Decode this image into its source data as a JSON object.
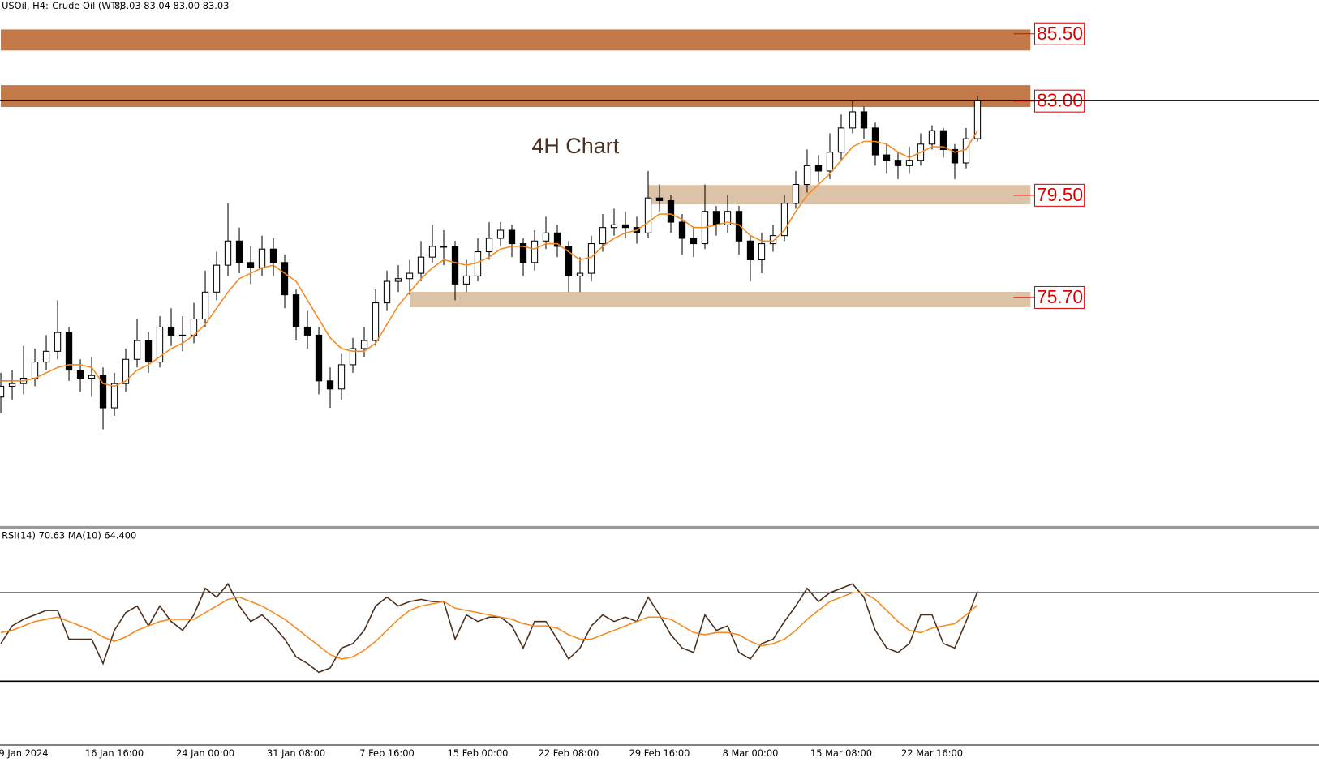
{
  "header": {
    "symbol": "USOil, H4:",
    "name": "Crude Oil (WTI)",
    "ohlc": "83.03 83.04 83.00 83.03"
  },
  "chart_data": [
    {
      "type": "candlestick",
      "annotations": [
        "4H Chart"
      ],
      "ylim": [
        67.22,
        86.75
      ],
      "categories": [
        null,
        null,
        "9 Jan 2024",
        null,
        null,
        null,
        null,
        null,
        null,
        null,
        "16 Jan 16:00",
        null,
        null,
        null,
        null,
        null,
        null,
        null,
        "24 Jan 00:00",
        null,
        null,
        null,
        null,
        null,
        null,
        null,
        "31 Jan 08:00",
        null,
        null,
        null,
        null,
        null,
        null,
        null,
        "7 Feb 16:00",
        null,
        null,
        null,
        null,
        null,
        null,
        null,
        "15 Feb 00:00",
        null,
        null,
        null,
        null,
        null,
        null,
        null,
        "22 Feb 08:00",
        null,
        null,
        null,
        null,
        null,
        null,
        null,
        "29 Feb 16:00",
        null,
        null,
        null,
        null,
        null,
        null,
        null,
        "8 Mar 00:00",
        null,
        null,
        null,
        null,
        null,
        null,
        null,
        "15 Mar 08:00",
        null,
        null,
        null,
        null,
        null,
        null,
        null,
        "22 Mar 16:00",
        null,
        null,
        null,
        null
      ],
      "open": [
        72.0,
        72.4,
        72.5,
        72.7,
        73.3,
        73.7,
        74.4,
        73.0,
        72.7,
        72.8,
        71.6,
        72.5,
        73.4,
        74.1,
        73.3,
        74.6,
        74.3,
        74.3,
        74.9,
        75.9,
        76.9,
        77.8,
        77.0,
        76.8,
        77.5,
        77.0,
        75.8,
        74.6,
        74.3,
        72.6,
        72.3,
        73.2,
        73.8,
        74.1,
        75.5,
        76.3,
        76.4,
        76.6,
        77.2,
        77.6,
        77.6,
        76.2,
        76.5,
        77.4,
        77.9,
        78.2,
        77.7,
        77.0,
        77.8,
        78.1,
        77.6,
        76.5,
        76.6,
        77.7,
        78.3,
        78.4,
        78.3,
        78.1,
        79.4,
        79.3,
        78.5,
        77.9,
        77.7,
        78.9,
        78.4,
        78.9,
        77.8,
        77.1,
        77.7,
        78.0,
        79.2,
        79.9,
        80.6,
        80.4,
        81.1,
        82.0,
        82.6,
        82.0,
        81.0,
        80.8,
        80.6,
        80.8,
        81.4,
        81.9,
        81.2,
        80.7,
        81.6
      ],
      "high": [
        72.9,
        73.0,
        73.9,
        73.8,
        74.3,
        75.6,
        74.6,
        73.4,
        73.5,
        73.1,
        72.9,
        73.8,
        74.9,
        74.4,
        75.0,
        75.3,
        75.0,
        75.5,
        76.7,
        77.4,
        79.2,
        78.3,
        77.6,
        78.0,
        77.9,
        77.3,
        76.0,
        75.2,
        74.6,
        73.1,
        73.6,
        74.2,
        74.6,
        76.0,
        76.7,
        76.9,
        77.1,
        77.8,
        78.4,
        78.2,
        77.8,
        77.1,
        77.9,
        78.5,
        78.5,
        78.4,
        77.9,
        78.2,
        78.7,
        78.4,
        77.8,
        77.2,
        78.0,
        78.8,
        79.0,
        78.9,
        78.7,
        80.4,
        79.9,
        79.5,
        78.8,
        78.3,
        79.9,
        79.1,
        79.5,
        79.1,
        78.0,
        78.1,
        78.4,
        79.5,
        80.4,
        81.2,
        81.0,
        81.8,
        82.5,
        83.0,
        82.8,
        82.2,
        81.4,
        81.1,
        81.3,
        81.8,
        82.1,
        82.0,
        81.4,
        82.0,
        83.2
      ],
      "low": [
        71.4,
        71.9,
        72.1,
        72.4,
        73.0,
        73.4,
        72.6,
        72.2,
        72.0,
        70.8,
        71.3,
        72.2,
        73.1,
        72.9,
        73.1,
        73.9,
        73.7,
        74.0,
        74.6,
        75.6,
        76.5,
        76.6,
        76.2,
        76.5,
        76.5,
        75.3,
        74.1,
        73.8,
        72.1,
        71.6,
        71.9,
        72.9,
        73.5,
        73.9,
        75.2,
        75.9,
        75.8,
        76.3,
        77.0,
        76.9,
        75.6,
        75.9,
        76.3,
        77.1,
        77.6,
        77.2,
        76.5,
        76.7,
        77.5,
        77.2,
        75.9,
        75.9,
        76.3,
        77.4,
        78.0,
        77.9,
        77.7,
        77.9,
        78.9,
        78.1,
        77.3,
        77.2,
        77.5,
        78.0,
        78.1,
        77.3,
        76.3,
        76.6,
        77.4,
        77.8,
        79.0,
        79.6,
        80.0,
        80.1,
        80.8,
        81.8,
        81.6,
        80.6,
        80.3,
        80.1,
        80.3,
        80.6,
        81.2,
        80.9,
        80.1,
        80.5,
        81.5
      ],
      "close": [
        72.4,
        72.5,
        72.7,
        73.3,
        73.7,
        74.4,
        73.0,
        72.7,
        72.8,
        71.6,
        72.5,
        73.4,
        74.1,
        73.3,
        74.6,
        74.3,
        74.3,
        74.9,
        75.9,
        76.9,
        77.8,
        77.0,
        76.8,
        77.5,
        77.0,
        75.8,
        74.6,
        74.3,
        72.6,
        72.3,
        73.2,
        73.8,
        74.1,
        75.5,
        76.3,
        76.4,
        76.6,
        77.2,
        77.6,
        77.6,
        76.2,
        76.5,
        77.4,
        77.9,
        78.2,
        77.7,
        77.0,
        77.8,
        78.1,
        77.6,
        76.5,
        76.6,
        77.7,
        78.3,
        78.4,
        78.3,
        78.1,
        79.4,
        79.3,
        78.5,
        77.9,
        77.7,
        78.9,
        78.4,
        78.9,
        77.8,
        77.1,
        77.7,
        78.0,
        79.2,
        79.9,
        80.6,
        80.4,
        81.1,
        82.0,
        82.6,
        82.0,
        81.0,
        80.8,
        80.6,
        80.8,
        81.4,
        81.9,
        81.2,
        80.7,
        81.6,
        83.03
      ],
      "series": [
        {
          "color": "#f5891f",
          "values": [
            72.6,
            72.6,
            72.6,
            72.7,
            72.9,
            73.1,
            73.2,
            73.2,
            73.1,
            72.5,
            72.4,
            72.6,
            73.0,
            73.2,
            73.5,
            73.8,
            74.0,
            74.3,
            74.7,
            75.3,
            75.9,
            76.4,
            76.6,
            76.8,
            76.9,
            76.6,
            76.3,
            75.6,
            74.9,
            74.2,
            73.8,
            73.7,
            73.7,
            74.0,
            74.7,
            75.4,
            75.9,
            76.4,
            76.8,
            77.1,
            77.0,
            76.9,
            77.0,
            77.2,
            77.5,
            77.6,
            77.6,
            77.5,
            77.7,
            77.7,
            77.4,
            77.1,
            77.2,
            77.6,
            77.9,
            78.1,
            78.2,
            78.5,
            78.8,
            78.8,
            78.6,
            78.3,
            78.3,
            78.4,
            78.5,
            78.4,
            78.0,
            77.8,
            77.8,
            78.2,
            78.9,
            79.5,
            79.9,
            80.3,
            80.8,
            81.3,
            81.5,
            81.5,
            81.4,
            81.1,
            80.9,
            81.1,
            81.3,
            81.3,
            81.1,
            81.2,
            81.9
          ]
        }
      ],
      "zones": [
        {
          "value": 85.5,
          "label": "85.50",
          "low": 84.88,
          "high": 85.66,
          "color": "#c47a48"
        },
        {
          "value": 83,
          "label": "83.00",
          "low": 82.78,
          "high": 83.59,
          "color": "#c47a48"
        },
        {
          "value": 79.5,
          "label": "79.50",
          "low": 79.16,
          "high": 79.88,
          "color": "#dcc2a6"
        },
        {
          "value": 75.7,
          "label": "75.70",
          "low": 75.34,
          "high": 75.91,
          "color": "#dcc2a6"
        }
      ]
    },
    {
      "type": "line",
      "title": "RSI(14) 70.63 MA(10) 64.400",
      "ylim": [
        0,
        100
      ],
      "levels": [
        30,
        70
      ],
      "series": [
        {
          "color": "#4a2e1a",
          "values": [
            47,
            55,
            58,
            60,
            62,
            62,
            49,
            49,
            49,
            38,
            53,
            61,
            64,
            55,
            64,
            57,
            53,
            60,
            72,
            68,
            74,
            64,
            57,
            60,
            55,
            49,
            41,
            38,
            34,
            36,
            45,
            47,
            53,
            64,
            68,
            64,
            66,
            67,
            66,
            66,
            49,
            60,
            57,
            59,
            59,
            55,
            45,
            57,
            57,
            49,
            40,
            45,
            55,
            60,
            57,
            59,
            57,
            68,
            60,
            51,
            45,
            43,
            60,
            53,
            55,
            43,
            40,
            47,
            49,
            57,
            64,
            72,
            66,
            70,
            72,
            74,
            68,
            53,
            45,
            43,
            47,
            60,
            60,
            47,
            45,
            57,
            70.63
          ]
        },
        {
          "color": "#f5891f",
          "values": [
            52,
            53,
            55,
            57,
            58,
            59,
            57,
            55,
            53,
            50,
            48,
            50,
            53,
            55,
            57,
            58,
            58,
            58,
            61,
            64,
            67,
            68,
            66,
            64,
            61,
            58,
            54,
            50,
            46,
            42,
            40,
            41,
            44,
            48,
            53,
            58,
            62,
            64,
            65,
            66,
            63,
            62,
            61,
            60,
            59,
            58,
            56,
            55,
            55,
            54,
            51,
            49,
            49,
            51,
            53,
            55,
            57,
            59,
            59,
            58,
            55,
            52,
            51,
            52,
            52,
            51,
            48,
            46,
            47,
            49,
            53,
            58,
            62,
            66,
            68,
            70,
            70,
            67,
            62,
            57,
            53,
            52,
            54,
            55,
            56,
            60,
            64.4
          ]
        }
      ]
    }
  ]
}
